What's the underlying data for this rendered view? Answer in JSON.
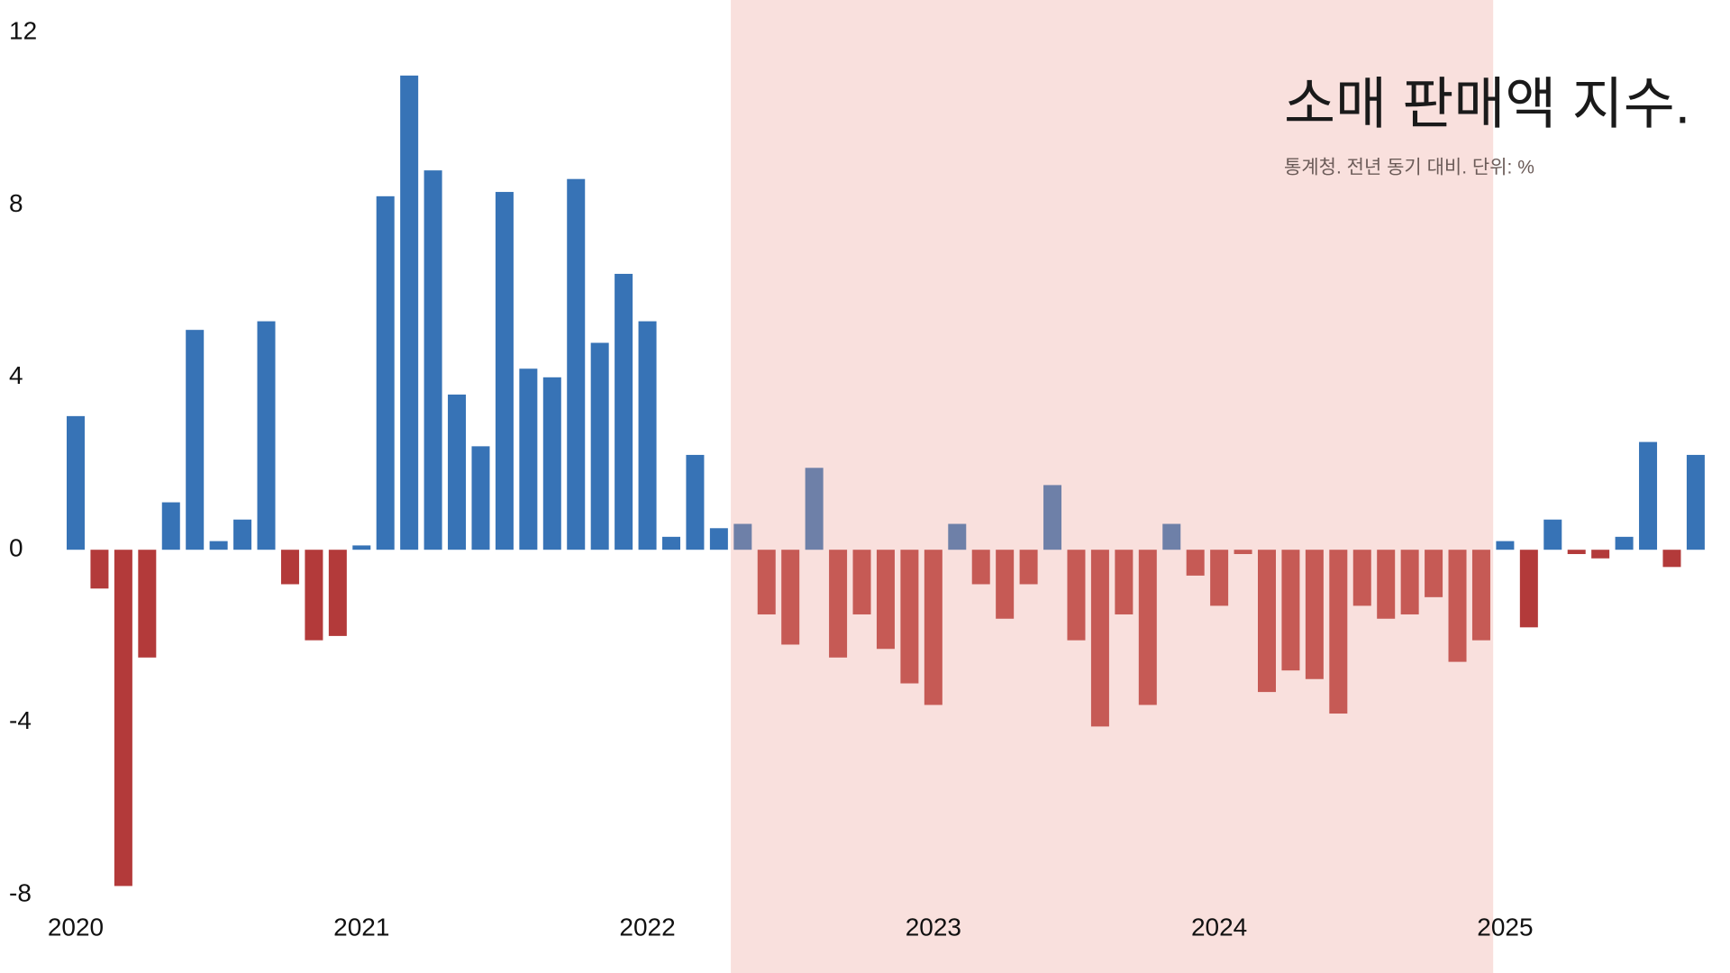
{
  "chart_data": {
    "type": "bar",
    "title": "소매 판매액 지수.",
    "subtitle": "통계청. 전년 동기 대비. 단위: %",
    "categories": [
      "2020",
      null,
      null,
      null,
      null,
      null,
      null,
      null,
      null,
      null,
      null,
      null,
      "2021",
      null,
      null,
      null,
      null,
      null,
      null,
      null,
      null,
      null,
      null,
      null,
      "2022",
      null,
      null,
      null,
      null,
      null,
      null,
      null,
      null,
      null,
      null,
      null,
      "2023",
      null,
      null,
      null,
      null,
      null,
      null,
      null,
      null,
      null,
      null,
      null,
      "2024",
      null,
      null,
      null,
      null,
      null,
      null,
      null,
      null,
      null,
      null,
      null,
      "2025",
      null,
      null,
      null,
      null,
      null,
      null,
      null,
      null
    ],
    "values": [
      3.1,
      -0.9,
      -7.8,
      -2.5,
      1.1,
      5.1,
      0.2,
      0.7,
      5.3,
      -0.8,
      -2.1,
      -2.0,
      0.1,
      8.2,
      11.0,
      8.8,
      3.6,
      2.4,
      8.3,
      4.2,
      4.0,
      8.6,
      4.8,
      6.4,
      5.3,
      0.3,
      2.2,
      0.5,
      0.6,
      -1.5,
      -2.2,
      1.9,
      -2.5,
      -1.5,
      -2.3,
      -3.1,
      -3.6,
      0.6,
      -0.8,
      -1.6,
      -0.8,
      1.5,
      -2.1,
      -4.1,
      -1.5,
      -3.6,
      0.6,
      -0.6,
      -1.3,
      -0.1,
      -3.3,
      -2.8,
      -3.0,
      -3.8,
      -1.3,
      -1.6,
      -1.5,
      -1.1,
      -2.6,
      -2.1,
      0.2,
      -1.8,
      0.7,
      -0.1,
      -0.2,
      0.3,
      2.5,
      -0.4,
      2.2
    ],
    "colors": {
      "positive": "#3773b6",
      "negative": "#b33a3a",
      "shaded_positive": "#6e80a8",
      "shaded_negative": "#c65a55",
      "shade": "#f9e0dd"
    },
    "shaded_range": [
      28,
      59
    ],
    "ylim": [
      -8,
      12
    ],
    "yticks": [
      -8,
      -4,
      0,
      4,
      8,
      12
    ],
    "grid": false
  }
}
